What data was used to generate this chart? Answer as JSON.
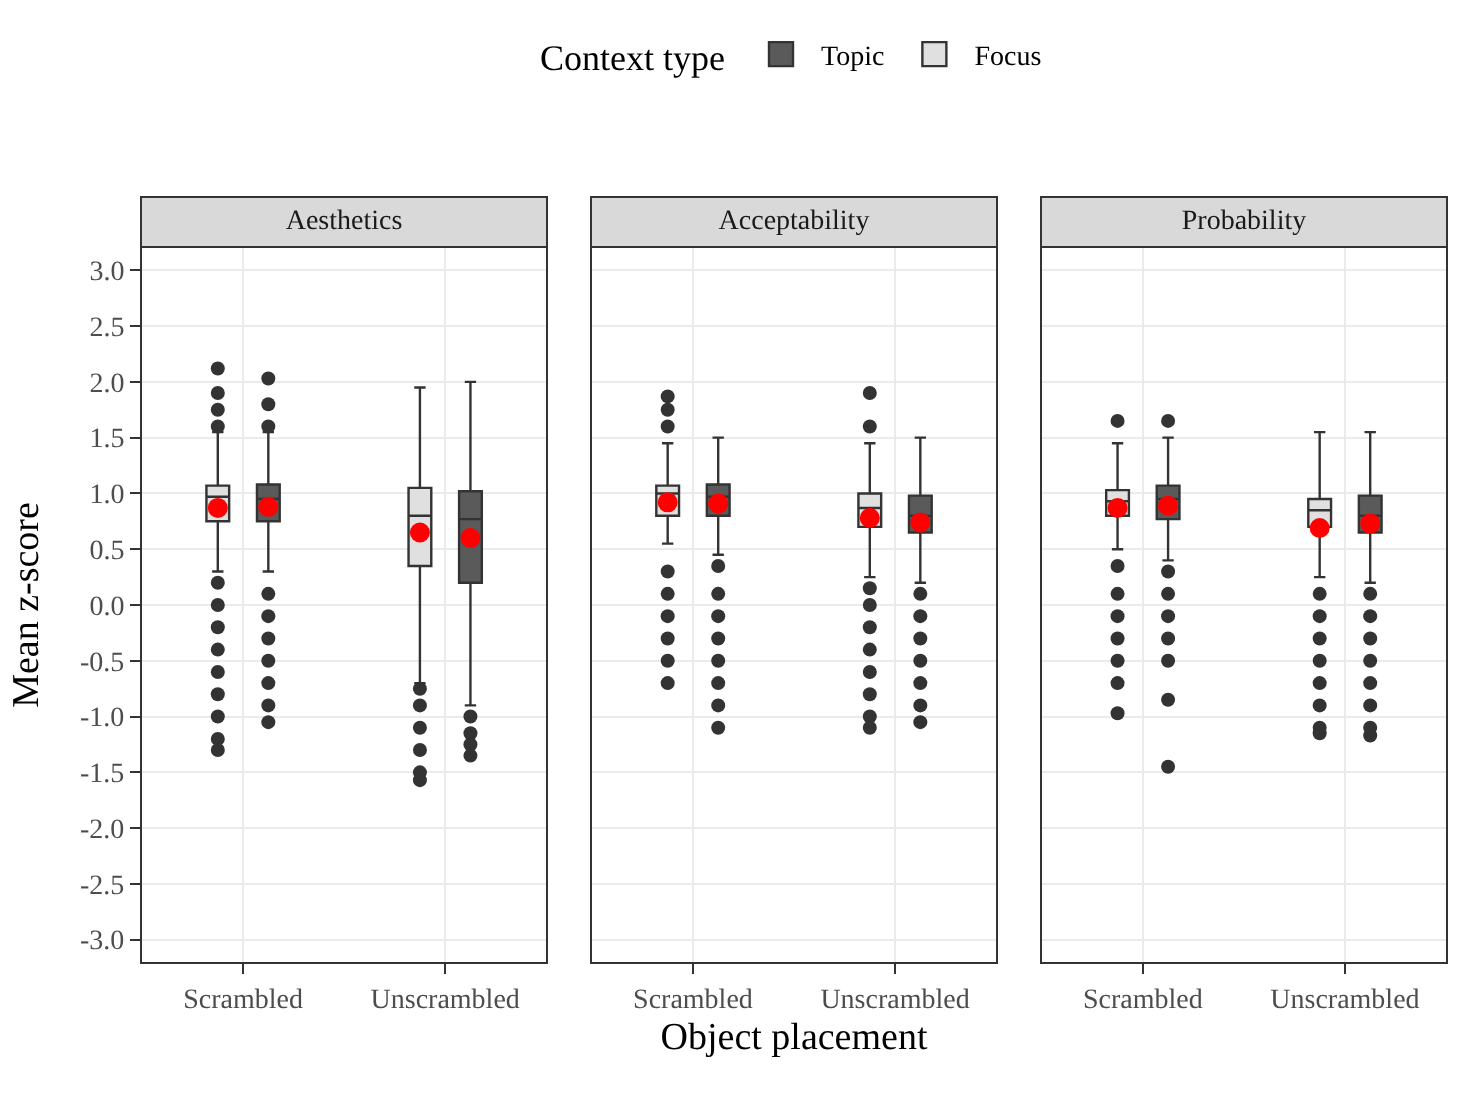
{
  "chart_data": [
    {
      "type": "box",
      "title": "Aesthetics",
      "ylabel": "Mean z-score",
      "categories": [
        "Scrambled",
        "Unscrambled"
      ],
      "legend_title": "Context type",
      "legend": "top",
      "grid": true,
      "ylim": [
        -3.2,
        3.2
      ],
      "yticks": [
        {
          "value": -3,
          "label": "-3.0"
        },
        {
          "value": -2.5,
          "label": "-2.5"
        },
        {
          "value": -2,
          "label": "-2.0"
        },
        {
          "value": -1.5,
          "label": "-1.5"
        },
        {
          "value": -1,
          "label": "-1.0"
        },
        {
          "value": -0.5,
          "label": "-0.5"
        },
        {
          "value": 0,
          "label": "0.0"
        },
        {
          "value": 0.5,
          "label": "0.5"
        },
        {
          "value": 1,
          "label": "1.0"
        },
        {
          "value": 1.5,
          "label": "1.5"
        },
        {
          "value": 2,
          "label": "2.0"
        },
        {
          "value": 2.5,
          "label": "2.5"
        },
        {
          "value": 3,
          "label": "3.0"
        }
      ],
      "series": [
        {
          "name": "Focus",
          "color": "#e0e0e0",
          "boxes": [
            {
              "low": 0.3,
              "q1": 0.75,
              "median": 0.97,
              "q3": 1.07,
              "high": 1.55,
              "mean": 0.87,
              "outliers": [
                1.6,
                1.75,
                1.9,
                2.12,
                0.2,
                0.0,
                -0.2,
                -0.4,
                -0.6,
                -0.8,
                -1.0,
                -1.2,
                -1.3
              ]
            },
            {
              "low": -0.7,
              "q1": 0.35,
              "median": 0.8,
              "q3": 1.05,
              "high": 1.95,
              "mean": 0.65,
              "outliers": [
                -0.75,
                -0.9,
                -1.1,
                -1.3,
                -1.5,
                -1.57
              ]
            }
          ]
        },
        {
          "name": "Topic",
          "color": "#5a5a5a",
          "boxes": [
            {
              "low": 0.3,
              "q1": 0.75,
              "median": 0.95,
              "q3": 1.08,
              "high": 1.55,
              "mean": 0.88,
              "outliers": [
                1.6,
                1.8,
                2.03,
                0.1,
                -0.1,
                -0.3,
                -0.5,
                -0.7,
                -0.9,
                -1.05
              ]
            },
            {
              "low": -0.9,
              "q1": 0.2,
              "median": 0.77,
              "q3": 1.02,
              "high": 2.0,
              "mean": 0.6,
              "outliers": [
                -1.0,
                -1.15,
                -1.25,
                -1.35
              ]
            }
          ]
        }
      ]
    },
    {
      "type": "box",
      "title": "Acceptability",
      "xlabel": "Object placement",
      "categories": [
        "Scrambled",
        "Unscrambled"
      ],
      "grid": true,
      "tick_labels": "x",
      "ylim": [
        -3.2,
        3.2
      ],
      "yticks": [
        -3,
        -2.5,
        -2,
        -1.5,
        -1,
        -0.5,
        0,
        0.5,
        1,
        1.5,
        2,
        2.5,
        3
      ],
      "series": [
        {
          "color": "#e0e0e0",
          "boxes": [
            {
              "low": 0.55,
              "q1": 0.8,
              "median": 1.0,
              "q3": 1.07,
              "high": 1.45,
              "mean": 0.92,
              "outliers": [
                1.6,
                1.75,
                1.87,
                0.3,
                0.1,
                -0.1,
                -0.3,
                -0.5,
                -0.7
              ]
            },
            {
              "low": 0.25,
              "q1": 0.7,
              "median": 0.87,
              "q3": 1.0,
              "high": 1.45,
              "mean": 0.78,
              "outliers": [
                1.6,
                1.9,
                0.15,
                0.0,
                -0.2,
                -0.4,
                -0.6,
                -0.8,
                -1.0,
                -1.1
              ]
            }
          ]
        },
        {
          "color": "#5a5a5a",
          "boxes": [
            {
              "low": 0.45,
              "q1": 0.8,
              "median": 0.97,
              "q3": 1.08,
              "high": 1.5,
              "mean": 0.91,
              "outliers": [
                0.35,
                0.1,
                -0.1,
                -0.3,
                -0.5,
                -0.7,
                -0.9,
                -1.1
              ]
            },
            {
              "low": 0.2,
              "q1": 0.65,
              "median": 0.8,
              "q3": 0.98,
              "high": 1.5,
              "mean": 0.74,
              "outliers": [
                0.1,
                -0.1,
                -0.3,
                -0.5,
                -0.7,
                -0.9,
                -1.05
              ]
            }
          ]
        }
      ]
    },
    {
      "type": "box",
      "title": "Probability",
      "categories": [
        "Scrambled",
        "Unscrambled"
      ],
      "grid": true,
      "tick_labels": "x",
      "ylim": [
        -3.2,
        3.2
      ],
      "yticks": [
        -3,
        -2.5,
        -2,
        -1.5,
        -1,
        -0.5,
        0,
        0.5,
        1,
        1.5,
        2,
        2.5,
        3
      ],
      "series": [
        {
          "color": "#e0e0e0",
          "boxes": [
            {
              "low": 0.5,
              "q1": 0.8,
              "median": 0.93,
              "q3": 1.03,
              "high": 1.45,
              "mean": 0.87,
              "outliers": [
                1.65,
                0.35,
                0.1,
                -0.1,
                -0.3,
                -0.5,
                -0.7,
                -0.97
              ]
            },
            {
              "low": 0.25,
              "q1": 0.7,
              "median": 0.85,
              "q3": 0.95,
              "high": 1.55,
              "mean": 0.69,
              "outliers": [
                0.1,
                -0.1,
                -0.3,
                -0.5,
                -0.7,
                -0.9,
                -1.1,
                -1.15
              ]
            }
          ]
        },
        {
          "color": "#5a5a5a",
          "boxes": [
            {
              "low": 0.4,
              "q1": 0.77,
              "median": 0.95,
              "q3": 1.07,
              "high": 1.5,
              "mean": 0.89,
              "outliers": [
                1.65,
                0.3,
                0.1,
                -0.1,
                -0.3,
                -0.5,
                -0.85,
                -1.45
              ]
            },
            {
              "low": 0.2,
              "q1": 0.65,
              "median": 0.8,
              "q3": 0.98,
              "high": 1.55,
              "mean": 0.73,
              "outliers": [
                0.1,
                -0.1,
                -0.3,
                -0.5,
                -0.7,
                -0.9,
                -1.1,
                -1.17
              ]
            }
          ]
        }
      ]
    }
  ]
}
